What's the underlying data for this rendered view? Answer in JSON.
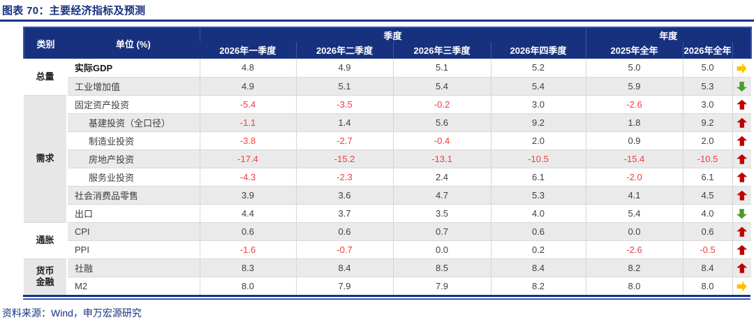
{
  "title": "图表 70：主要经济指标及预测",
  "source": "资料来源：Wind，申万宏源研究",
  "colors": {
    "navy": "#17317f",
    "accent_blue": "#2e59b5",
    "negative_red": "#f53b3b",
    "row_stripe": "#eaeaea",
    "arrow_up": "#c00000",
    "arrow_down": "#4d9a2e",
    "arrow_flat": "#ffc000"
  },
  "table": {
    "group_headers": [
      {
        "label": "季度",
        "span": 4
      },
      {
        "label": "年度",
        "span": 3
      }
    ],
    "col_headers": [
      "类别",
      "单位 (%)",
      "2026年一季度",
      "2026年二季度",
      "2026年三季度",
      "2026年四季度",
      "2025年全年",
      "2026年全年"
    ],
    "groups": [
      {
        "label": "总量"
      },
      {
        "label": "需求"
      },
      {
        "label": "通胀"
      },
      {
        "label": "货币金融"
      }
    ],
    "rows": [
      {
        "group": "总量",
        "label": "实际GDP",
        "bold": true,
        "indent": false,
        "values": [
          "4.8",
          "4.9",
          "5.1",
          "5.2",
          "5.0",
          "5.0"
        ],
        "trend": "flat"
      },
      {
        "group": "总量",
        "label": "工业增加值",
        "bold": false,
        "indent": false,
        "values": [
          "4.9",
          "5.1",
          "5.4",
          "5.4",
          "5.9",
          "5.3"
        ],
        "trend": "down"
      },
      {
        "group": "需求",
        "label": "固定资产投资",
        "bold": false,
        "indent": false,
        "values": [
          "-5.4",
          "-3.5",
          "-0.2",
          "3.0",
          "-2.6",
          "3.0"
        ],
        "trend": "up"
      },
      {
        "group": "需求",
        "label": "基建投资（全口径）",
        "bold": false,
        "indent": true,
        "values": [
          "-1.1",
          "1.4",
          "5.6",
          "9.2",
          "1.8",
          "9.2"
        ],
        "trend": "up"
      },
      {
        "group": "需求",
        "label": "制造业投资",
        "bold": false,
        "indent": true,
        "values": [
          "-3.8",
          "-2.7",
          "-0.4",
          "2.0",
          "0.9",
          "2.0"
        ],
        "trend": "up"
      },
      {
        "group": "需求",
        "label": "房地产投资",
        "bold": false,
        "indent": true,
        "values": [
          "-17.4",
          "-15.2",
          "-13.1",
          "-10.5",
          "-15.4",
          "-10.5"
        ],
        "trend": "up"
      },
      {
        "group": "需求",
        "label": "服务业投资",
        "bold": false,
        "indent": true,
        "values": [
          "-4.3",
          "-2.3",
          "2.4",
          "6.1",
          "-2.0",
          "6.1"
        ],
        "trend": "up"
      },
      {
        "group": "需求",
        "label": "社会消费品零售",
        "bold": false,
        "indent": false,
        "values": [
          "3.9",
          "3.6",
          "4.7",
          "5.3",
          "4.1",
          "4.5"
        ],
        "trend": "up"
      },
      {
        "group": "需求",
        "label": "出口",
        "bold": false,
        "indent": false,
        "values": [
          "4.4",
          "3.7",
          "3.5",
          "4.0",
          "5.4",
          "4.0"
        ],
        "trend": "down"
      },
      {
        "group": "通胀",
        "label": "CPI",
        "bold": false,
        "indent": false,
        "values": [
          "0.6",
          "0.6",
          "0.7",
          "0.6",
          "0.0",
          "0.6"
        ],
        "trend": "up"
      },
      {
        "group": "通胀",
        "label": "PPI",
        "bold": false,
        "indent": false,
        "values": [
          "-1.6",
          "-0.7",
          "0.0",
          "0.2",
          "-2.6",
          "-0.5"
        ],
        "trend": "up"
      },
      {
        "group": "货币金融",
        "label": "社融",
        "bold": false,
        "indent": false,
        "values": [
          "8.3",
          "8.4",
          "8.5",
          "8.4",
          "8.2",
          "8.4"
        ],
        "trend": "up"
      },
      {
        "group": "货币金融",
        "label": "M2",
        "bold": false,
        "indent": false,
        "values": [
          "8.0",
          "7.9",
          "7.9",
          "8.2",
          "8.0",
          "8.0"
        ],
        "trend": "flat"
      }
    ]
  }
}
